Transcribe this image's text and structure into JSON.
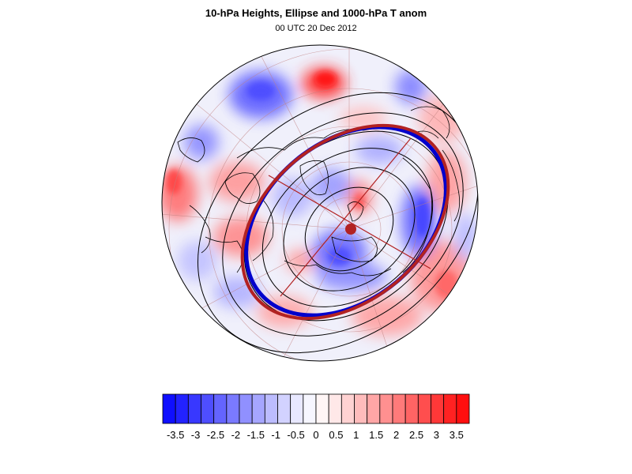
{
  "title": "10-hPa Heights, Ellipse and 1000-hPa T anom",
  "subtitle": "00 UTC 20 Dec 2012",
  "colorbar": {
    "labels": [
      "-3.5",
      "-3",
      "-2.5",
      "-2",
      "-1.5",
      "-1",
      "-0.5",
      "0",
      "0.5",
      "1",
      "1.5",
      "2",
      "2.5",
      "3",
      "3.5"
    ],
    "colors": [
      "#0f0fff",
      "#2222ff",
      "#3838ff",
      "#4e4eff",
      "#6464ff",
      "#7a7aff",
      "#9090ff",
      "#a6a6ff",
      "#bcbcff",
      "#d2d2ff",
      "#e8e8ff",
      "#f6f6ff",
      "#fff6f6",
      "#ffe8e8",
      "#ffd2d2",
      "#ffbcbc",
      "#ffa6a6",
      "#ff9090",
      "#ff7a7a",
      "#ff6464",
      "#ff4e4e",
      "#ff3838",
      "#ff2222",
      "#ff0f0f"
    ]
  },
  "map": {
    "projection": "north-polar-stereographic",
    "ellipse_colors": {
      "fit_ellipse": "#b22222",
      "vortex_edge": "#0000cc",
      "center_marker": "#b22222"
    }
  }
}
